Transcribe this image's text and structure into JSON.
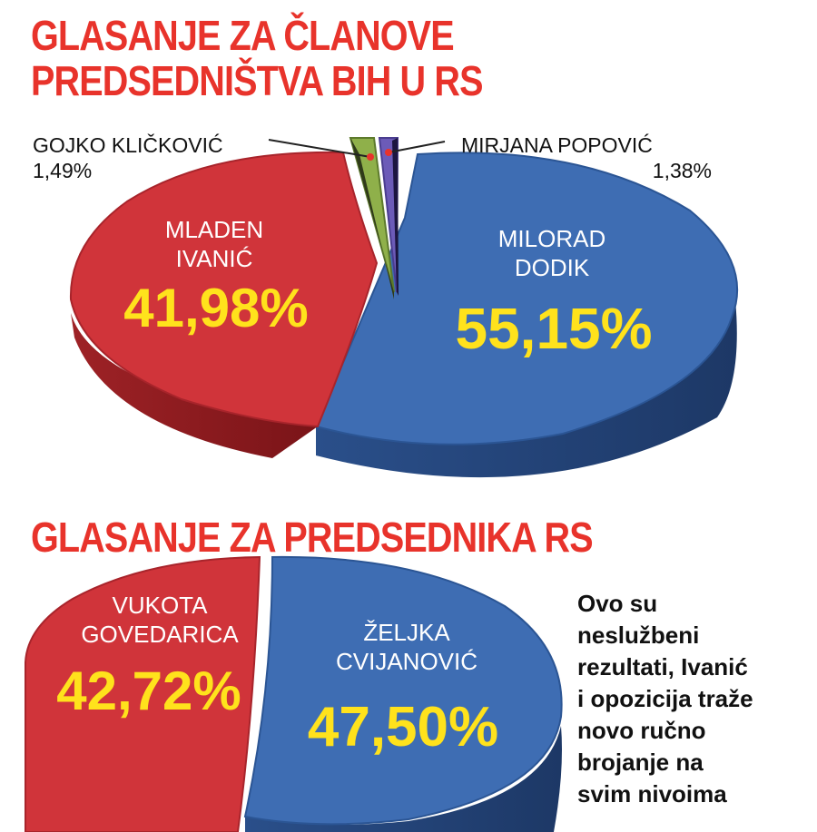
{
  "chart_data": [
    {
      "type": "pie",
      "title": "GLASANJE ZA ČLANOVE PREDSEDNIŠTVA BIH U RS",
      "title_lines": [
        "GLASANJE ZA ČLANOVE",
        "PREDSEDNIŠTVA BIH U RS"
      ],
      "slices": [
        {
          "label_lines": [
            "MILORAD",
            "DODIK"
          ],
          "value": 55.15,
          "value_label": "55,15%",
          "color": "#3e6db3"
        },
        {
          "label_lines": [
            "MLADEN",
            "IVANIĆ"
          ],
          "value": 41.98,
          "value_label": "41,98%",
          "color": "#d0343a"
        },
        {
          "label_lines": [
            "GOJKO KLIČKOVIĆ"
          ],
          "value": 1.49,
          "value_label": "1,49%",
          "color": "#8fb04a"
        },
        {
          "label_lines": [
            "MIRJANA POPOVIĆ"
          ],
          "value": 1.38,
          "value_label": "1,38%",
          "color": "#6c5bb8"
        }
      ]
    },
    {
      "type": "pie",
      "title": "GLASANJE ZA PREDSEDNIKA RS",
      "title_lines": [
        "GLASANJE ZA PREDSEDNIKA RS"
      ],
      "slices": [
        {
          "label_lines": [
            "ŽELJKA",
            "CVIJANOVIĆ"
          ],
          "value": 47.5,
          "value_label": "47,50%",
          "color": "#3e6db3"
        },
        {
          "label_lines": [
            "VUKOTA",
            "GOVEDARICA"
          ],
          "value": 42.72,
          "value_label": "42,72%",
          "color": "#d0343a"
        }
      ]
    }
  ],
  "note": "Ovo su\nneslužbeni\nrezultati, Ivanić\ni opozicija traže\nnovo ručno\nbrojanje na\nsvim nivoima",
  "colors": {
    "title": "#e8332b",
    "value_text": "#ffe21c",
    "slice_label_text": "#ffffff"
  }
}
